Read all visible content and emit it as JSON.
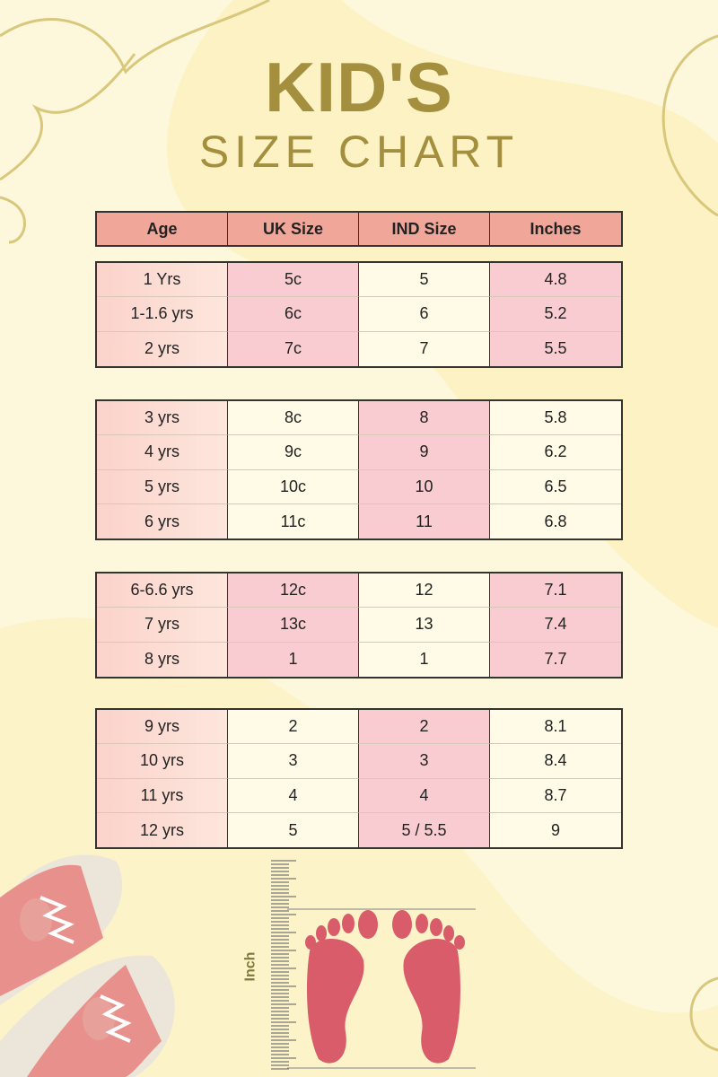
{
  "title": {
    "line1": "KID'S",
    "line2": "SIZE  CHART"
  },
  "colors": {
    "header": "#f0a79a",
    "highlight": "#f8ccd0",
    "title": "#a38f3e",
    "background": "#fdf8dc",
    "foot": "#d95c6a"
  },
  "table": {
    "headers": [
      "Age",
      "UK Size",
      "IND Size",
      "Inches"
    ],
    "groups": [
      {
        "highlight_columns": [
          1,
          3
        ],
        "rows": [
          [
            "1 Yrs",
            "5c",
            "5",
            "4.8"
          ],
          [
            "1-1.6 yrs",
            "6c",
            "6",
            "5.2"
          ],
          [
            "2 yrs",
            "7c",
            "7",
            "5.5"
          ]
        ]
      },
      {
        "highlight_columns": [
          2
        ],
        "rows": [
          [
            "3 yrs",
            "8c",
            "8",
            "5.8"
          ],
          [
            "4 yrs",
            "9c",
            "9",
            "6.2"
          ],
          [
            "5 yrs",
            "10c",
            "10",
            "6.5"
          ],
          [
            "6 yrs",
            "11c",
            "11",
            "6.8"
          ]
        ]
      },
      {
        "highlight_columns": [
          1,
          3
        ],
        "rows": [
          [
            "6-6.6 yrs",
            "12c",
            "12",
            "7.1"
          ],
          [
            "7 yrs",
            "13c",
            "13",
            "7.4"
          ],
          [
            "8 yrs",
            "1",
            "1",
            "7.7"
          ]
        ]
      },
      {
        "highlight_columns": [
          2
        ],
        "rows": [
          [
            "9 yrs",
            "2",
            "2",
            "8.1"
          ],
          [
            "10 yrs",
            "3",
            "3",
            "8.4"
          ],
          [
            "11 yrs",
            "4",
            "4",
            "8.7"
          ],
          [
            "12 yrs",
            "5",
            "5 / 5.5",
            "9"
          ]
        ]
      }
    ]
  },
  "illustration": {
    "ruler_label": "Inch",
    "icons": [
      "shoes-icon",
      "ruler-icon",
      "footprints-icon"
    ]
  }
}
